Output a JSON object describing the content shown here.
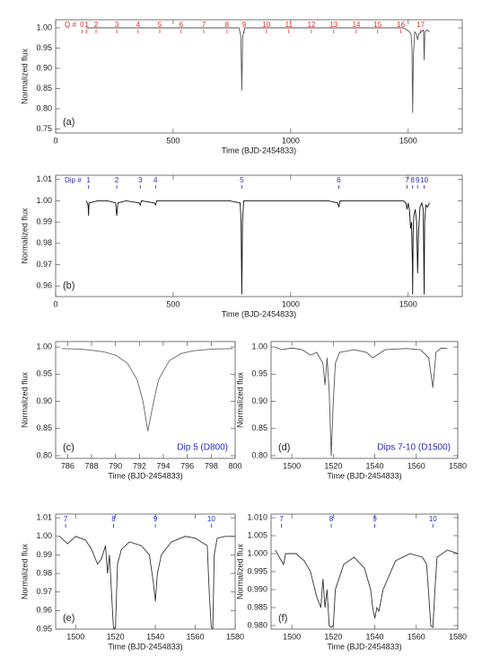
{
  "chart_data": [
    {
      "type": "line",
      "panel_label": "(a)",
      "xlabel": "Time (BJD-2454833)",
      "ylabel": "Normalized flux",
      "xlim": [
        0,
        1730
      ],
      "ylim": [
        0.74,
        1.02
      ],
      "xticks": [
        0,
        500,
        1000,
        1500
      ],
      "yticks": [
        {
          "value": 1,
          "label": "1.00"
        },
        0.95,
        {
          "value": 0.9,
          "label": "0.90"
        },
        0.85,
        {
          "value": 0.8,
          "label": "0.80"
        },
        0.75
      ],
      "color": "#555555",
      "x": [
        130,
        200,
        300,
        400,
        500,
        600,
        700,
        780,
        788,
        792,
        796,
        805,
        900,
        1000,
        1100,
        1200,
        1300,
        1400,
        1480,
        1495,
        1505,
        1512,
        1516,
        1519,
        1522,
        1528,
        1535,
        1540,
        1545,
        1555,
        1565,
        1568,
        1571,
        1580,
        1590
      ],
      "values": [
        1.0,
        1.0,
        1.0,
        1.0,
        1.0,
        1.0,
        1.0,
        1.0,
        0.98,
        0.845,
        0.98,
        1.0,
        1.0,
        1.0,
        1.0,
        1.0,
        1.0,
        1.0,
        1.0,
        0.995,
        0.99,
        0.985,
        0.95,
        0.79,
        0.93,
        0.99,
        0.985,
        0.97,
        0.985,
        0.99,
        0.995,
        0.92,
        0.99,
        0.995,
        0.99
      ],
      "markers": {
        "title": "Q #",
        "color": "#e03030",
        "labels": [
          "0",
          "1",
          "2",
          "3",
          "4",
          "5",
          "6",
          "7",
          "8",
          "9",
          "10",
          "11",
          "12",
          "13",
          "14",
          "15",
          "16",
          "17"
        ],
        "x": [
          112,
          132,
          172,
          260,
          351,
          443,
          534,
          630,
          729,
          802,
          897,
          992,
          1088,
          1183,
          1279,
          1370,
          1469,
          1553
        ]
      }
    },
    {
      "type": "line",
      "panel_label": "(b)",
      "xlabel": "Time (BJD-2454833)",
      "ylabel": "Normalized flux",
      "xlim": [
        0,
        1730
      ],
      "ylim": [
        0.955,
        1.012
      ],
      "xticks": [
        0,
        500,
        1000,
        1500
      ],
      "yticks": [
        1.01,
        {
          "value": 1,
          "label": "1.00"
        },
        0.99,
        0.98,
        0.97,
        0.96
      ],
      "color": "#111111",
      "x": [
        130,
        138,
        140,
        142,
        180,
        220,
        255,
        260,
        265,
        300,
        355,
        360,
        365,
        420,
        425,
        430,
        500,
        560,
        620,
        680,
        740,
        785,
        789,
        792,
        795,
        800,
        860,
        920,
        980,
        1040,
        1100,
        1160,
        1200,
        1205,
        1210,
        1260,
        1320,
        1380,
        1440,
        1480,
        1490,
        1495,
        1500,
        1506,
        1510,
        1514,
        1516,
        1518,
        1519,
        1521,
        1524,
        1530,
        1536,
        1540,
        1544,
        1550,
        1558,
        1564,
        1568,
        1570,
        1575,
        1582,
        1590
      ],
      "values": [
        1.0,
        0.998,
        0.993,
        0.999,
        1.0,
        1.0,
        0.999,
        0.993,
        0.999,
        1.0,
        0.999,
        0.998,
        1.0,
        0.999,
        0.998,
        1.0,
        1.0,
        1.0,
        1.0,
        1.0,
        1.0,
        0.999,
        0.99,
        0.956,
        0.99,
        1.0,
        1.0,
        1.0,
        1.0,
        1.0,
        1.0,
        1.0,
        0.999,
        0.997,
        1.0,
        1.0,
        1.0,
        1.0,
        1.0,
        1.0,
        0.999,
        0.996,
        0.999,
        0.995,
        0.987,
        0.99,
        0.98,
        0.97,
        0.956,
        0.985,
        0.993,
        0.996,
        0.99,
        0.966,
        0.985,
        0.997,
        0.999,
        0.996,
        0.956,
        0.99,
        0.998,
        0.997,
        0.999
      ],
      "markers": {
        "title": "Dip #",
        "color": "#2a2ac0",
        "labels": [
          "1",
          "2",
          "3",
          "4",
          "5",
          "6",
          "7",
          "8",
          "9",
          "10"
        ],
        "x": [
          140,
          260,
          360,
          425,
          792,
          1205,
          1495,
          1519,
          1540,
          1568
        ]
      }
    },
    {
      "type": "line",
      "panel_label": "(c)",
      "annotation": "Dip 5 (D800)",
      "xlabel": "Time (BJD-2454833)",
      "ylabel": "Normalized flux",
      "xlim": [
        785,
        800
      ],
      "ylim": [
        0.795,
        1.01
      ],
      "xticks": [
        786,
        788,
        790,
        792,
        794,
        796,
        798,
        800
      ],
      "yticks": [
        {
          "value": 1,
          "label": "1.00"
        },
        0.95,
        {
          "value": 0.9,
          "label": "0.90"
        },
        0.85,
        {
          "value": 0.8,
          "label": "0.80"
        }
      ],
      "color": "#666666",
      "x": [
        785.5,
        787,
        788,
        789,
        790,
        791,
        791.8,
        792.3,
        792.7,
        793.1,
        793.6,
        794.5,
        795.5,
        796.5,
        798,
        799.8
      ],
      "values": [
        0.997,
        0.996,
        0.994,
        0.991,
        0.985,
        0.97,
        0.94,
        0.9,
        0.845,
        0.89,
        0.94,
        0.975,
        0.988,
        0.993,
        0.996,
        0.997
      ]
    },
    {
      "type": "line",
      "panel_label": "(d)",
      "annotation": "Dips 7-10 (D1500)",
      "xlabel": "Time (BJD-2454833)",
      "ylabel": "Normalized flux",
      "xlim": [
        1490,
        1580
      ],
      "ylim": [
        0.795,
        1.01
      ],
      "xticks": [
        1500,
        1520,
        1540,
        1560,
        1580
      ],
      "yticks": [
        {
          "value": 1,
          "label": "1.00"
        },
        0.95,
        {
          "value": 0.9,
          "label": "0.90"
        },
        0.85,
        {
          "value": 0.8,
          "label": "0.80"
        }
      ],
      "color": "#555555",
      "x": [
        1492,
        1495,
        1500,
        1505,
        1509,
        1512,
        1515,
        1516,
        1517,
        1518,
        1519,
        1520,
        1521,
        1523,
        1530,
        1536,
        1539,
        1541,
        1545,
        1555,
        1562,
        1566,
        1568,
        1569.5,
        1572,
        1575
      ],
      "values": [
        1.0,
        0.995,
        0.998,
        0.995,
        0.985,
        0.99,
        0.97,
        0.93,
        0.98,
        0.92,
        0.8,
        0.9,
        0.97,
        0.99,
        0.995,
        0.99,
        0.98,
        0.985,
        0.995,
        0.997,
        0.995,
        0.98,
        0.925,
        0.99,
        0.998,
        0.997
      ]
    },
    {
      "type": "line",
      "panel_label": "(e)",
      "xlabel": "Time (BJD-2454833)",
      "ylabel": "Normalized flux",
      "xlim": [
        1490,
        1580
      ],
      "ylim": [
        0.95,
        1.012
      ],
      "xticks": [
        1500,
        1520,
        1540,
        1560,
        1580
      ],
      "yticks": [
        1.01,
        {
          "value": 1,
          "label": "1.00"
        },
        0.99,
        0.98,
        0.97,
        0.96,
        0.95
      ],
      "color": "#333333",
      "x": [
        1492,
        1494,
        1496,
        1500,
        1505,
        1508,
        1511,
        1513,
        1515,
        1516,
        1517,
        1518,
        1519,
        1520,
        1521,
        1523,
        1527,
        1533,
        1537,
        1539,
        1540,
        1541,
        1543,
        1548,
        1555,
        1560,
        1563,
        1566,
        1567,
        1568,
        1568.8,
        1569.5,
        1571,
        1575,
        1580
      ],
      "values": [
        1.0,
        0.998,
        0.996,
        1.0,
        0.998,
        0.993,
        0.985,
        0.988,
        0.995,
        0.98,
        0.99,
        0.97,
        0.95,
        0.951,
        0.985,
        0.993,
        0.997,
        0.995,
        0.99,
        0.975,
        0.965,
        0.98,
        0.99,
        0.997,
        1.0,
        0.999,
        0.997,
        0.995,
        0.97,
        0.951,
        0.95,
        0.99,
        0.999,
        1.0,
        1.0
      ],
      "markers": {
        "color": "#2a2ac0",
        "labels": [
          "7",
          "8",
          "9",
          "10"
        ],
        "x": [
          1495,
          1519,
          1540,
          1568
        ]
      }
    },
    {
      "type": "line",
      "panel_label": "(f)",
      "xlabel": "Time (BJD-2454833)",
      "ylabel": "Normalized flux",
      "xlim": [
        1490,
        1580
      ],
      "ylim": [
        0.979,
        1.011
      ],
      "xticks": [
        1500,
        1520,
        1540,
        1560,
        1580
      ],
      "yticks": [
        {
          "value": 1.01,
          "label": "1.010"
        },
        1.005,
        {
          "value": 1,
          "label": "1.000"
        },
        0.995,
        {
          "value": 0.99,
          "label": "0.990"
        },
        0.985,
        {
          "value": 0.98,
          "label": "0.980"
        }
      ],
      "color": "#333333",
      "x": [
        1492,
        1496,
        1497,
        1502,
        1506,
        1509,
        1512,
        1514,
        1515,
        1516,
        1517,
        1518,
        1519,
        1520,
        1521,
        1525,
        1530,
        1535,
        1538,
        1539,
        1540,
        1541,
        1542,
        1544,
        1550,
        1557,
        1563,
        1565,
        1567,
        1568,
        1569,
        1570,
        1575,
        1580
      ],
      "values": [
        1.001,
        0.997,
        1.0,
        1.0,
        0.998,
        0.995,
        0.988,
        0.985,
        0.993,
        0.985,
        0.99,
        0.98,
        0.9795,
        0.98,
        0.99,
        0.997,
        0.999,
        0.996,
        0.99,
        0.985,
        0.982,
        0.985,
        0.984,
        0.99,
        0.998,
        1.0,
        0.999,
        0.997,
        0.98,
        0.9795,
        0.99,
        0.999,
        1.001,
        1.0
      ],
      "markers": {
        "color": "#2a2ac0",
        "labels": [
          "7",
          "8",
          "9",
          "10"
        ],
        "x": [
          1495,
          1519,
          1540,
          1568
        ]
      }
    }
  ]
}
